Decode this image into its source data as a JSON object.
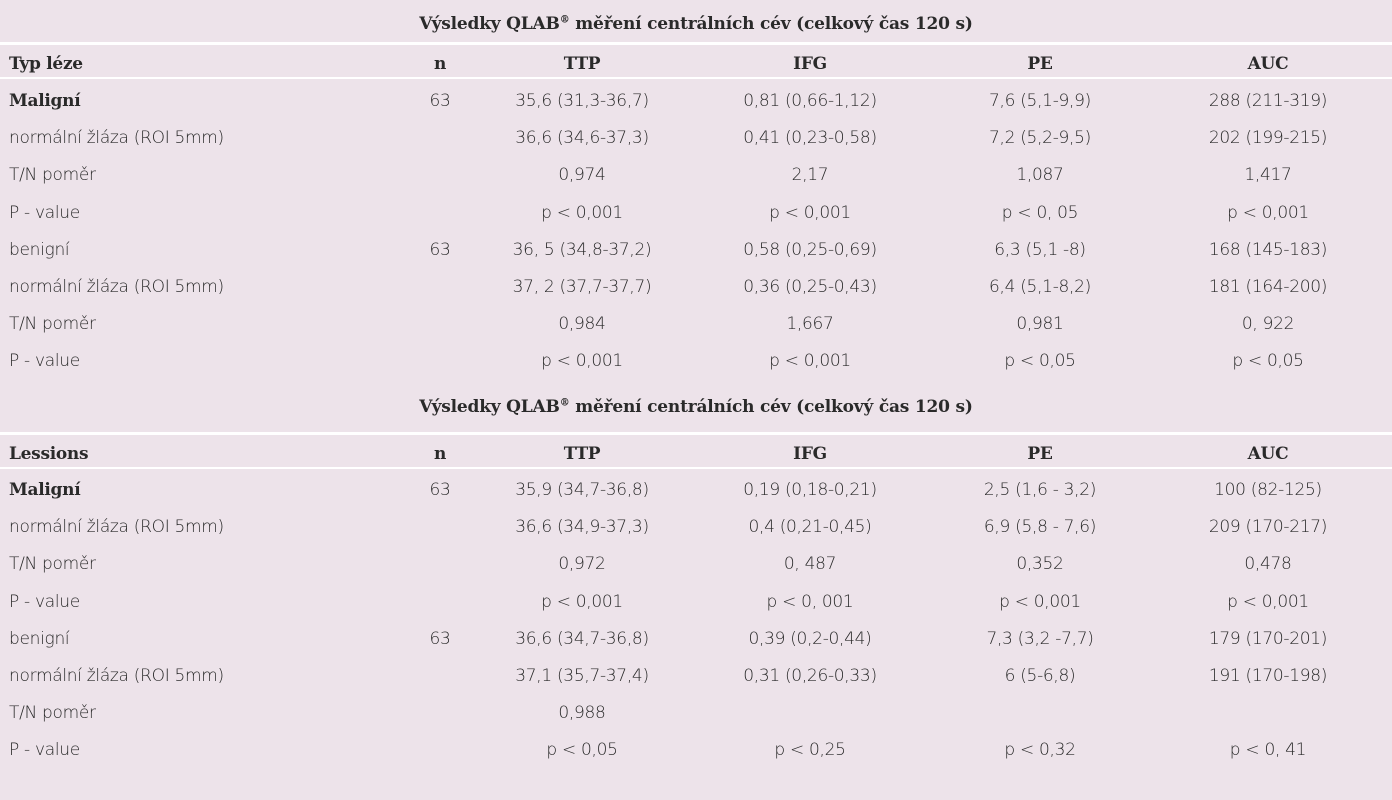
{
  "tables": [
    {
      "title_prefix": "Výsledky QLAB",
      "title_sup": "®",
      "title_suffix": " měření centrálních cév  (celkový čas 120 s)",
      "headers": [
        "Typ léze",
        "n",
        "TTP",
        "IFG",
        "PE",
        "AUC"
      ],
      "rows": [
        {
          "cells": [
            "Maligní",
            "63",
            "35,6 (31,3-36,7)",
            "0,81 (0,66-1,12)",
            "7,6 (5,1-9,9)",
            "288 (211-319)"
          ],
          "bold_first": true
        },
        {
          "cells": [
            "normální žláza (ROI 5mm)",
            "",
            "36,6 (34,6-37,3)",
            "0,41 (0,23-0,58)",
            "7,2 (5,2-9,5)",
            "202 (199-215)"
          ],
          "bold_first": false
        },
        {
          "cells": [
            "T/N poměr",
            "",
            "0,974",
            "2,17",
            "1,087",
            "1,417"
          ],
          "bold_first": false
        },
        {
          "cells": [
            "P - value",
            "",
            "p < 0,001",
            "p < 0,001",
            "p < 0, 05",
            "p < 0,001"
          ],
          "bold_first": false
        },
        {
          "cells": [
            "benigní",
            "63",
            "36, 5 (34,8-37,2)",
            "0,58 (0,25-0,69)",
            "6,3 (5,1 -8)",
            "168 (145-183)"
          ],
          "bold_first": false
        },
        {
          "cells": [
            "normální žláza (ROI 5mm)",
            "",
            "37, 2 (37,7-37,7)",
            "0,36 (0,25-0,43)",
            "6,4 (5,1-8,2)",
            "181 (164-200)"
          ],
          "bold_first": false
        },
        {
          "cells": [
            "T/N poměr",
            "",
            "0,984",
            "1,667",
            "0,981",
            "0, 922"
          ],
          "bold_first": false
        },
        {
          "cells": [
            "P - value",
            "",
            "p < 0,001",
            "p < 0,001",
            "p < 0,05",
            "p < 0,05"
          ],
          "bold_first": false
        }
      ]
    },
    {
      "title_prefix": "Výsledky QLAB",
      "title_sup": "®",
      "title_suffix": " měření centrálních cév  (celkový čas 120 s)",
      "headers": [
        "Lessions",
        "n",
        "TTP",
        "IFG",
        "PE",
        "AUC"
      ],
      "rows": [
        {
          "cells": [
            "Maligní",
            "63",
            "35,9 (34,7-36,8)",
            "0,19 (0,18-0,21)",
            "2,5 (1,6 - 3,2)",
            "100 (82-125)"
          ],
          "bold_first": true
        },
        {
          "cells": [
            "normální žláza (ROI 5mm)",
            "",
            "36,6 (34,9-37,3)",
            "0,4 (0,21-0,45)",
            "6,9 (5,8 - 7,6)",
            "209 (170-217)"
          ],
          "bold_first": false
        },
        {
          "cells": [
            "T/N poměr",
            "",
            "0,972",
            "0, 487",
            "0,352",
            "0,478"
          ],
          "bold_first": false
        },
        {
          "cells": [
            "P - value",
            "",
            "p < 0,001",
            "p < 0, 001",
            "p < 0,001",
            "p < 0,001"
          ],
          "bold_first": false
        },
        {
          "cells": [
            "benigní",
            "63",
            "36,6 (34,7-36,8)",
            "0,39 (0,2-0,44)",
            "7,3 (3,2 -7,7)",
            "179 (170-201)"
          ],
          "bold_first": false
        },
        {
          "cells": [
            "normální žláza (ROI 5mm)",
            "",
            "37,1 (35,7-37,4)",
            "0,31 (0,26-0,33)",
            "6 (5-6,8)",
            "191 (170-198)"
          ],
          "bold_first": false
        },
        {
          "cells": [
            "T/N poměr",
            "",
            "0,988",
            "",
            "",
            ""
          ],
          "bold_first": false
        },
        {
          "cells": [
            "P - value",
            "",
            "p < 0,05",
            "p < 0,25",
            "p < 0,32",
            "p < 0, 41"
          ],
          "bold_first": false
        }
      ]
    }
  ]
}
